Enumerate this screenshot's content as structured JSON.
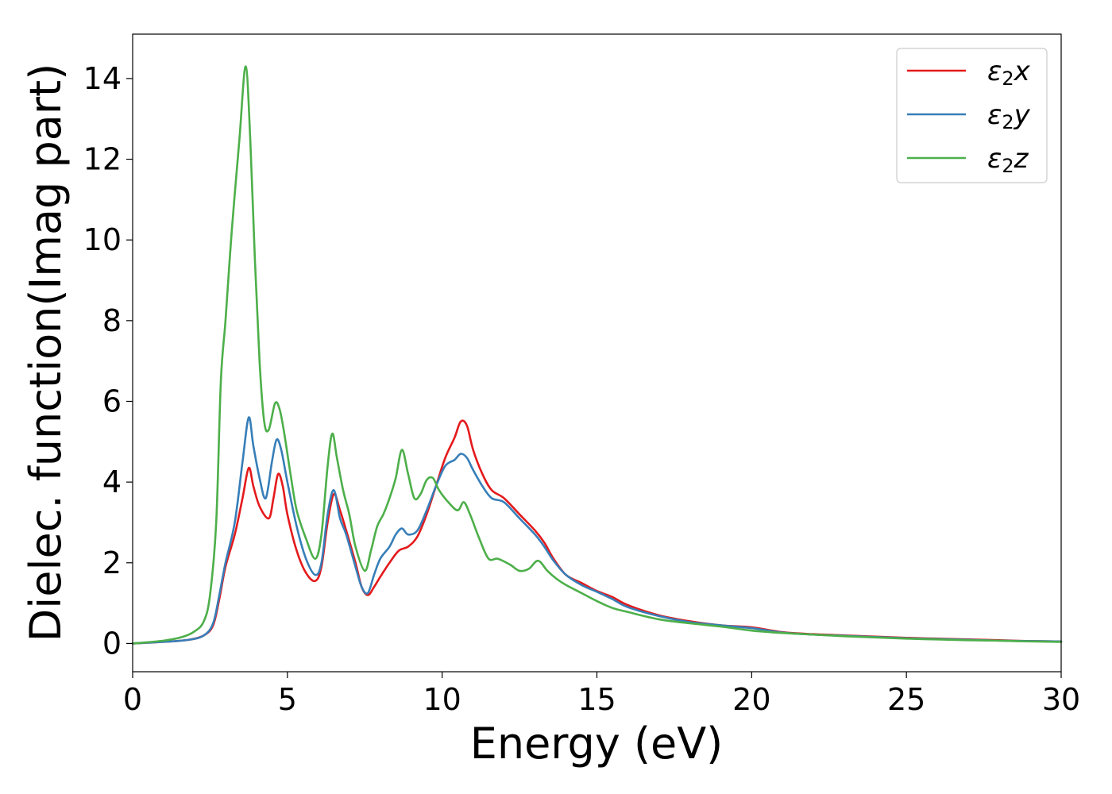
{
  "chart_data": {
    "type": "line",
    "xlabel": "Energy (eV)",
    "ylabel": "Dielec. function(Imag part)",
    "xlim": [
      0,
      30
    ],
    "ylim": [
      -0.7,
      15.1
    ],
    "xticks": [
      0,
      5,
      10,
      15,
      20,
      25,
      30
    ],
    "yticks": [
      0,
      2,
      4,
      6,
      8,
      10,
      12,
      14
    ],
    "grid": false,
    "legend_position": "top-right",
    "series": [
      {
        "name": "ε2x",
        "legend": {
          "base": "ε",
          "sub": "2",
          "tail": "x"
        },
        "color": "#e41a1c",
        "points": [
          [
            0,
            0
          ],
          [
            1,
            0.04
          ],
          [
            1.8,
            0.09
          ],
          [
            2.3,
            0.2
          ],
          [
            2.6,
            0.45
          ],
          [
            2.8,
            1.1
          ],
          [
            3.0,
            1.9
          ],
          [
            3.3,
            2.7
          ],
          [
            3.55,
            3.6
          ],
          [
            3.75,
            4.35
          ],
          [
            3.9,
            3.9
          ],
          [
            4.1,
            3.4
          ],
          [
            4.4,
            3.1
          ],
          [
            4.55,
            3.6
          ],
          [
            4.7,
            4.2
          ],
          [
            4.85,
            3.9
          ],
          [
            5.0,
            3.2
          ],
          [
            5.3,
            2.3
          ],
          [
            5.6,
            1.75
          ],
          [
            5.9,
            1.55
          ],
          [
            6.1,
            1.9
          ],
          [
            6.3,
            3.0
          ],
          [
            6.5,
            3.7
          ],
          [
            6.7,
            3.3
          ],
          [
            6.9,
            2.8
          ],
          [
            7.2,
            2.0
          ],
          [
            7.4,
            1.4
          ],
          [
            7.6,
            1.2
          ],
          [
            7.8,
            1.4
          ],
          [
            8.0,
            1.65
          ],
          [
            8.3,
            2.0
          ],
          [
            8.6,
            2.3
          ],
          [
            8.9,
            2.4
          ],
          [
            9.2,
            2.65
          ],
          [
            9.5,
            3.2
          ],
          [
            9.8,
            3.9
          ],
          [
            10.1,
            4.6
          ],
          [
            10.4,
            5.1
          ],
          [
            10.6,
            5.5
          ],
          [
            10.8,
            5.4
          ],
          [
            11.0,
            4.8
          ],
          [
            11.3,
            4.2
          ],
          [
            11.6,
            3.8
          ],
          [
            12.0,
            3.6
          ],
          [
            12.5,
            3.2
          ],
          [
            13.0,
            2.8
          ],
          [
            13.3,
            2.5
          ],
          [
            13.6,
            2.1
          ],
          [
            14.0,
            1.7
          ],
          [
            14.5,
            1.5
          ],
          [
            15.0,
            1.3
          ],
          [
            15.5,
            1.15
          ],
          [
            16.0,
            0.95
          ],
          [
            17.0,
            0.7
          ],
          [
            18.0,
            0.55
          ],
          [
            19.0,
            0.45
          ],
          [
            20.0,
            0.4
          ],
          [
            21.0,
            0.28
          ],
          [
            22.0,
            0.23
          ],
          [
            23.0,
            0.2
          ],
          [
            24.0,
            0.17
          ],
          [
            25.0,
            0.14
          ],
          [
            26.0,
            0.12
          ],
          [
            27.0,
            0.1
          ],
          [
            28.0,
            0.08
          ],
          [
            29.0,
            0.06
          ],
          [
            30.0,
            0.05
          ]
        ]
      },
      {
        "name": "ε2y",
        "legend": {
          "base": "ε",
          "sub": "2",
          "tail": "y"
        },
        "color": "#377eb8",
        "points": [
          [
            0,
            0
          ],
          [
            1,
            0.04
          ],
          [
            1.8,
            0.09
          ],
          [
            2.3,
            0.2
          ],
          [
            2.6,
            0.5
          ],
          [
            2.8,
            1.2
          ],
          [
            3.0,
            2.0
          ],
          [
            3.3,
            3.0
          ],
          [
            3.55,
            4.5
          ],
          [
            3.75,
            5.6
          ],
          [
            3.9,
            4.9
          ],
          [
            4.1,
            4.1
          ],
          [
            4.3,
            3.6
          ],
          [
            4.5,
            4.5
          ],
          [
            4.65,
            5.05
          ],
          [
            4.8,
            4.8
          ],
          [
            5.0,
            4.0
          ],
          [
            5.3,
            2.9
          ],
          [
            5.6,
            2.1
          ],
          [
            5.9,
            1.7
          ],
          [
            6.1,
            2.0
          ],
          [
            6.3,
            3.2
          ],
          [
            6.5,
            3.8
          ],
          [
            6.7,
            3.1
          ],
          [
            6.9,
            2.7
          ],
          [
            7.2,
            1.9
          ],
          [
            7.4,
            1.4
          ],
          [
            7.6,
            1.25
          ],
          [
            7.8,
            1.7
          ],
          [
            8.0,
            2.1
          ],
          [
            8.3,
            2.4
          ],
          [
            8.5,
            2.7
          ],
          [
            8.7,
            2.85
          ],
          [
            8.9,
            2.7
          ],
          [
            9.2,
            2.8
          ],
          [
            9.5,
            3.3
          ],
          [
            9.8,
            3.9
          ],
          [
            10.1,
            4.4
          ],
          [
            10.4,
            4.55
          ],
          [
            10.6,
            4.7
          ],
          [
            10.8,
            4.6
          ],
          [
            11.0,
            4.3
          ],
          [
            11.3,
            3.9
          ],
          [
            11.6,
            3.6
          ],
          [
            12.0,
            3.5
          ],
          [
            12.5,
            3.1
          ],
          [
            13.0,
            2.7
          ],
          [
            13.3,
            2.4
          ],
          [
            13.6,
            2.05
          ],
          [
            14.0,
            1.7
          ],
          [
            14.5,
            1.45
          ],
          [
            15.0,
            1.28
          ],
          [
            15.5,
            1.1
          ],
          [
            16.0,
            0.9
          ],
          [
            17.0,
            0.68
          ],
          [
            18.0,
            0.53
          ],
          [
            19.0,
            0.45
          ],
          [
            20.0,
            0.38
          ],
          [
            21.0,
            0.27
          ],
          [
            22.0,
            0.22
          ],
          [
            23.0,
            0.19
          ],
          [
            24.0,
            0.16
          ],
          [
            25.0,
            0.13
          ],
          [
            26.0,
            0.11
          ],
          [
            27.0,
            0.09
          ],
          [
            28.0,
            0.07
          ],
          [
            29.0,
            0.06
          ],
          [
            30.0,
            0.05
          ]
        ]
      },
      {
        "name": "ε2z",
        "legend": {
          "base": "ε",
          "sub": "2",
          "tail": "z"
        },
        "color": "#4daf4a",
        "points": [
          [
            0,
            0
          ],
          [
            1,
            0.07
          ],
          [
            1.6,
            0.16
          ],
          [
            2.0,
            0.3
          ],
          [
            2.3,
            0.55
          ],
          [
            2.5,
            1.2
          ],
          [
            2.7,
            3.0
          ],
          [
            2.85,
            6.5
          ],
          [
            3.0,
            8.0
          ],
          [
            3.2,
            10.2
          ],
          [
            3.45,
            12.5
          ],
          [
            3.65,
            14.3
          ],
          [
            3.8,
            12.5
          ],
          [
            3.95,
            9.5
          ],
          [
            4.1,
            7.0
          ],
          [
            4.25,
            5.5
          ],
          [
            4.4,
            5.3
          ],
          [
            4.6,
            5.95
          ],
          [
            4.75,
            5.8
          ],
          [
            4.9,
            5.2
          ],
          [
            5.1,
            4.2
          ],
          [
            5.3,
            3.3
          ],
          [
            5.6,
            2.6
          ],
          [
            5.9,
            2.1
          ],
          [
            6.1,
            2.7
          ],
          [
            6.3,
            4.4
          ],
          [
            6.45,
            5.2
          ],
          [
            6.6,
            4.6
          ],
          [
            6.8,
            3.8
          ],
          [
            7.0,
            3.2
          ],
          [
            7.2,
            2.4
          ],
          [
            7.5,
            1.8
          ],
          [
            7.7,
            2.3
          ],
          [
            7.9,
            2.9
          ],
          [
            8.1,
            3.2
          ],
          [
            8.3,
            3.6
          ],
          [
            8.5,
            4.1
          ],
          [
            8.7,
            4.8
          ],
          [
            8.9,
            4.2
          ],
          [
            9.1,
            3.6
          ],
          [
            9.3,
            3.7
          ],
          [
            9.5,
            4.05
          ],
          [
            9.7,
            4.1
          ],
          [
            9.9,
            3.8
          ],
          [
            10.2,
            3.5
          ],
          [
            10.5,
            3.3
          ],
          [
            10.7,
            3.5
          ],
          [
            10.9,
            3.2
          ],
          [
            11.2,
            2.6
          ],
          [
            11.5,
            2.1
          ],
          [
            11.8,
            2.1
          ],
          [
            12.2,
            1.95
          ],
          [
            12.5,
            1.8
          ],
          [
            12.8,
            1.85
          ],
          [
            13.1,
            2.05
          ],
          [
            13.4,
            1.8
          ],
          [
            13.7,
            1.6
          ],
          [
            14.0,
            1.45
          ],
          [
            14.5,
            1.25
          ],
          [
            15.0,
            1.05
          ],
          [
            15.5,
            0.88
          ],
          [
            16.0,
            0.78
          ],
          [
            17.0,
            0.6
          ],
          [
            18.0,
            0.5
          ],
          [
            19.0,
            0.42
          ],
          [
            20.0,
            0.32
          ],
          [
            21.0,
            0.26
          ],
          [
            22.0,
            0.22
          ],
          [
            23.0,
            0.18
          ],
          [
            24.0,
            0.15
          ],
          [
            25.0,
            0.12
          ],
          [
            26.0,
            0.1
          ],
          [
            27.0,
            0.08
          ],
          [
            28.0,
            0.07
          ],
          [
            29.0,
            0.05
          ],
          [
            30.0,
            0.04
          ]
        ]
      }
    ]
  }
}
